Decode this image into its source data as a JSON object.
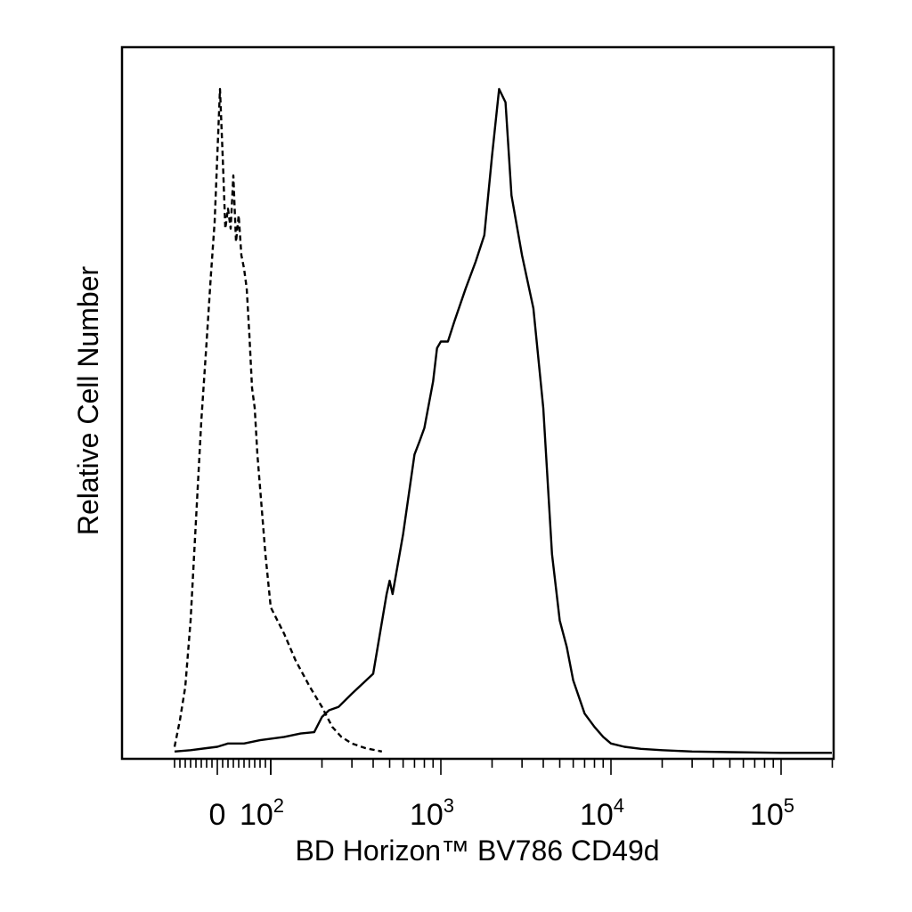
{
  "chart_data": {
    "type": "line",
    "title": "",
    "xlabel": "BD Horizon™ BV786 CD49d",
    "ylabel": "Relative Cell Number",
    "x_scale": "biexponential",
    "xlim": [
      -80,
      250000
    ],
    "ylim": [
      0,
      100
    ],
    "x_ticks": [
      {
        "value": 0,
        "base": "0",
        "exp": ""
      },
      {
        "value": 100,
        "base": "10",
        "exp": "2"
      },
      {
        "value": 1000,
        "base": "10",
        "exp": "3"
      },
      {
        "value": 10000,
        "base": "10",
        "exp": "4"
      },
      {
        "value": 100000,
        "base": "10",
        "exp": "5"
      }
    ],
    "grid": false,
    "legend": "none",
    "series": [
      {
        "style": "dashed",
        "color": "#000000",
        "x": [
          -80,
          -70,
          -60,
          -50,
          -40,
          -30,
          -20,
          -12,
          -5,
          0,
          5,
          10,
          15,
          20,
          25,
          30,
          35,
          40,
          45,
          50,
          55,
          60,
          65,
          70,
          75,
          80,
          85,
          90,
          95,
          100,
          120,
          140,
          170,
          200,
          230,
          260,
          300,
          360,
          450
        ],
        "y": [
          1,
          5,
          10,
          20,
          35,
          50,
          62,
          72,
          80,
          90,
          100,
          90,
          79,
          82,
          79,
          87,
          77,
          81,
          75,
          73,
          70,
          63,
          55,
          52,
          45,
          40,
          35,
          30,
          26,
          22,
          18,
          14,
          10,
          7,
          4,
          2.5,
          1.5,
          0.8,
          0.3
        ]
      },
      {
        "style": "solid",
        "color": "#000000",
        "x": [
          -80,
          -50,
          -20,
          0,
          20,
          50,
          80,
          120,
          150,
          180,
          200,
          220,
          250,
          300,
          400,
          480,
          500,
          520,
          600,
          700,
          750,
          800,
          900,
          950,
          1000,
          1100,
          1200,
          1400,
          1600,
          1800,
          2000,
          2200,
          2400,
          2600,
          3000,
          3500,
          4000,
          4500,
          5000,
          5500,
          6000,
          7000,
          8000,
          9000,
          10000,
          12000,
          15000,
          20000,
          30000,
          50000,
          100000,
          250000
        ],
        "y": [
          0.3,
          0.5,
          0.8,
          1,
          1.5,
          1.5,
          2,
          2.5,
          3,
          3.2,
          5.5,
          6.5,
          7,
          9,
          12,
          24,
          26,
          24,
          33,
          45,
          47,
          49,
          56,
          61,
          62,
          62,
          65,
          70,
          74,
          78,
          90,
          100,
          98,
          84,
          75,
          67,
          52,
          30,
          20,
          16,
          11,
          6,
          4,
          2.5,
          1.5,
          1,
          0.7,
          0.5,
          0.3,
          0.2,
          0.1,
          0.1
        ]
      }
    ]
  }
}
